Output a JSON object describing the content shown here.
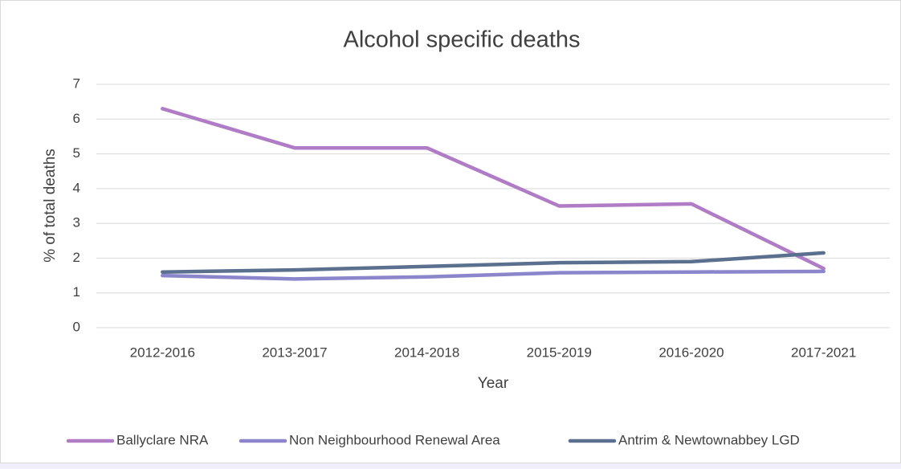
{
  "chart_data": {
    "type": "line",
    "title": "Alcohol specific deaths",
    "x_label": "Year",
    "y_label": "% of total deaths",
    "categories": [
      "2012-2016",
      "2013-2017",
      "2014-2018",
      "2015-2019",
      "2016-2020",
      "2017-2021"
    ],
    "series": [
      {
        "name": "Ballyclare NRA",
        "color": "#b07cc6",
        "values": [
          6.3,
          5.17,
          5.17,
          3.5,
          3.56,
          1.7
        ]
      },
      {
        "name": "Non Neighbourhood Renewal Area",
        "color": "#8b85cb",
        "values": [
          1.5,
          1.4,
          1.46,
          1.58,
          1.6,
          1.62
        ]
      },
      {
        "name": "Antrim & Newtownabbey LGD",
        "color": "#5b6f8e",
        "values": [
          1.6,
          1.66,
          1.76,
          1.87,
          1.9,
          2.15
        ]
      }
    ],
    "ylim": [
      0,
      7
    ],
    "yticks": [
      0,
      1,
      2,
      3,
      4,
      5,
      6,
      7
    ],
    "grid": true,
    "legend": "bottom"
  }
}
